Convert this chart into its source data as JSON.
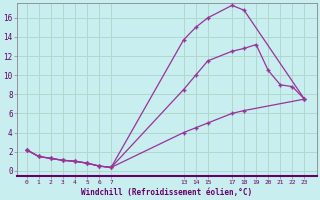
{
  "xlabel": "Windchill (Refroidissement éolien,°C)",
  "background_color": "#c8eef0",
  "grid_color": "#b0d8cc",
  "line_color": "#993399",
  "line1": {
    "x": [
      0,
      1,
      2,
      3,
      4,
      5,
      6,
      7,
      13,
      14,
      15,
      17,
      18,
      23
    ],
    "y": [
      2.2,
      1.5,
      1.3,
      1.1,
      1.0,
      0.8,
      0.5,
      0.35,
      13.7,
      15.0,
      16.0,
      17.3,
      16.8,
      7.5
    ]
  },
  "line2": {
    "x": [
      0,
      1,
      2,
      3,
      4,
      5,
      6,
      7,
      13,
      14,
      15,
      17,
      18,
      19,
      20,
      21,
      22,
      23
    ],
    "y": [
      2.2,
      1.5,
      1.3,
      1.1,
      1.0,
      0.8,
      0.5,
      0.35,
      8.5,
      10.0,
      11.5,
      12.5,
      12.8,
      13.2,
      10.5,
      9.0,
      8.8,
      7.5
    ]
  },
  "line3": {
    "x": [
      0,
      1,
      2,
      3,
      4,
      5,
      6,
      7,
      13,
      14,
      15,
      17,
      18,
      23
    ],
    "y": [
      2.2,
      1.5,
      1.3,
      1.1,
      1.0,
      0.8,
      0.5,
      0.35,
      4.0,
      4.5,
      5.0,
      6.0,
      6.3,
      7.5
    ]
  },
  "xticks": [
    0,
    1,
    2,
    3,
    4,
    5,
    6,
    7,
    13,
    14,
    15,
    17,
    18,
    19,
    20,
    21,
    22,
    23
  ],
  "yticks": [
    0,
    2,
    4,
    6,
    8,
    10,
    12,
    14,
    16
  ],
  "xlim": [
    -0.8,
    24.0
  ],
  "ylim": [
    -0.5,
    17.5
  ],
  "spine_color": "#888888",
  "tick_label_color": "#660066",
  "xlabel_color": "#660066"
}
